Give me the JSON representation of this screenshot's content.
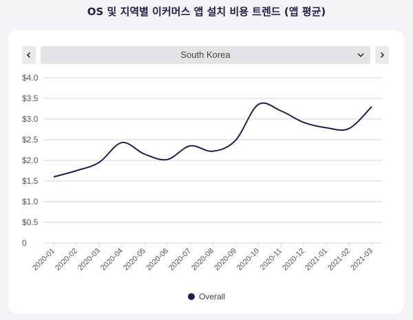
{
  "page": {
    "title": "OS 및 지역별 이커머스 앱 설치 비용 트렌드 (앱 평균)"
  },
  "selector": {
    "selected": "South Korea"
  },
  "colors": {
    "line": "#241b4a",
    "grid": "#d4d4d8",
    "axis_text": "#555555"
  },
  "chart_data": {
    "type": "line",
    "title": "OS 및 지역별 이커머스 앱 설치 비용 트렌드 (앱 평균)",
    "xlabel": "",
    "ylabel": "",
    "categories": [
      "2020-01",
      "2020-02",
      "2020-03",
      "2020-04",
      "2020-05",
      "2020-06",
      "2020-07",
      "2020-08",
      "2020-09",
      "2020-10",
      "2020-11",
      "2020-12",
      "2021-01",
      "2021-02",
      "2021-03"
    ],
    "y_ticks": [
      "0",
      "$0.5",
      "$1.0",
      "$1.5",
      "$2.0",
      "$2.5",
      "$3.0",
      "$3.5",
      "$4.0"
    ],
    "ylim": [
      0,
      4.0
    ],
    "grid": true,
    "legend_position": "bottom",
    "series": [
      {
        "name": "Overall",
        "values": [
          1.6,
          1.75,
          1.95,
          2.43,
          2.15,
          2.02,
          2.35,
          2.22,
          2.48,
          3.35,
          3.2,
          2.92,
          2.79,
          2.77,
          3.3
        ]
      }
    ]
  }
}
